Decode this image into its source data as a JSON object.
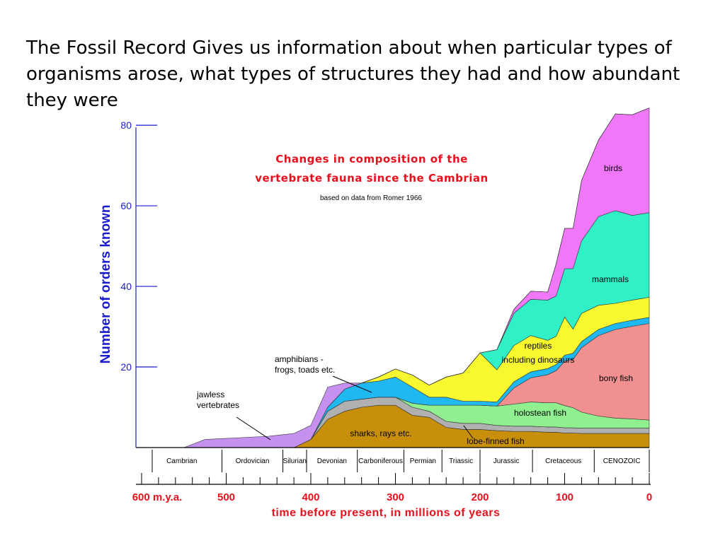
{
  "heading": "The Fossil Record Gives us information about when particular types of organisms arose, what types of structures they had  and how abundant they were",
  "chart_data": {
    "type": "area",
    "title_line1": "Changes in composition of the",
    "title_line2": "vertebrate fauna since the Cambrian",
    "subtitle": "based on data from Romer 1966",
    "ylabel": "Number of orders known",
    "xlabel": "time before present, in millions of years",
    "yticks": [
      20,
      40,
      60,
      80
    ],
    "ylim": [
      0,
      83
    ],
    "xlim": [
      600,
      0
    ],
    "xtick_labels": [
      {
        "value": 600,
        "label": "600 m.y.a."
      },
      {
        "value": 500,
        "label": "500"
      },
      {
        "value": 400,
        "label": "400"
      },
      {
        "value": 300,
        "label": "300"
      },
      {
        "value": 200,
        "label": "200"
      },
      {
        "value": 100,
        "label": "100"
      },
      {
        "value": 0,
        "label": "0"
      }
    ],
    "periods": [
      {
        "name": "Cambrian",
        "start": 600,
        "end": 505
      },
      {
        "name": "Ordovician",
        "start": 505,
        "end": 433
      },
      {
        "name": "Silurian",
        "start": 433,
        "end": 405
      },
      {
        "name": "Devonian",
        "start": 405,
        "end": 345
      },
      {
        "name": "Carboniferous",
        "start": 345,
        "end": 290
      },
      {
        "name": "Permian",
        "start": 290,
        "end": 245
      },
      {
        "name": "Triassic",
        "start": 245,
        "end": 200
      },
      {
        "name": "Jurassic",
        "start": 200,
        "end": 138
      },
      {
        "name": "Cretaceous",
        "start": 138,
        "end": 65
      },
      {
        "name": "CENOZOIC",
        "start": 65,
        "end": 0
      }
    ],
    "x": [
      600,
      550,
      525,
      450,
      420,
      400,
      380,
      360,
      340,
      320,
      300,
      280,
      260,
      240,
      220,
      200,
      180,
      160,
      140,
      120,
      110,
      100,
      90,
      80,
      60,
      40,
      20,
      0
    ],
    "series": [
      {
        "name": "sharks, rays etc.",
        "color": "#c8900a",
        "values": [
          0,
          0,
          0,
          0,
          0,
          2,
          7,
          9,
          10,
          10.5,
          10.5,
          8,
          7.5,
          5,
          4.5,
          4.5,
          4.2,
          4,
          4,
          3.8,
          3.8,
          3.6,
          3.6,
          3.5,
          3.5,
          3.5,
          3.5,
          3.5
        ]
      },
      {
        "name": "lobe-finned fish",
        "color": "#b0b0b0",
        "values": [
          0,
          0,
          0,
          0,
          0,
          0,
          2,
          2.5,
          2,
          2,
          2,
          2,
          1.5,
          1.5,
          1.5,
          1.5,
          1.3,
          1.3,
          1.3,
          1.3,
          1.3,
          1.3,
          1.3,
          1.3,
          1.3,
          1.3,
          1.3,
          1.3
        ]
      },
      {
        "name": "holostean fish",
        "color": "#90f090",
        "values": [
          0,
          0,
          0,
          0,
          0,
          0,
          0,
          0,
          0,
          0,
          0,
          1,
          1.5,
          4,
          4.5,
          4.5,
          4.8,
          5.5,
          6,
          6,
          6,
          5.5,
          5,
          4,
          3,
          2.5,
          2.3,
          2
        ]
      },
      {
        "name": "bony fish",
        "color": "#f09090",
        "values": [
          0,
          0,
          0,
          0,
          0,
          0,
          0,
          0,
          0,
          0,
          0,
          0,
          0,
          0,
          0,
          0,
          0,
          4,
          6,
          7,
          8,
          11,
          12,
          16,
          20,
          22,
          23,
          24
        ]
      },
      {
        "name": "amphibians - frogs, toads etc.",
        "color": "#20b8f0",
        "values": [
          0,
          0,
          0,
          0,
          0,
          0,
          1,
          3,
          4,
          4,
          5,
          4,
          2,
          2,
          1,
          1,
          1,
          1.5,
          1.5,
          1.5,
          1.5,
          1.5,
          1.5,
          1.5,
          1.5,
          1.5,
          1.5,
          1.5
        ]
      },
      {
        "name": "reptiles including dinosaurs",
        "color": "#f8f830",
        "values": [
          0,
          0,
          0,
          0,
          0,
          0,
          0,
          0,
          0,
          1,
          2,
          3,
          3,
          5,
          7,
          12,
          8,
          9,
          9,
          7,
          7,
          9.5,
          6,
          7,
          6,
          5,
          5,
          5
        ]
      },
      {
        "name": "mammals",
        "color": "#30f0c8",
        "values": [
          0,
          0,
          0,
          0,
          0,
          0,
          0,
          0,
          0,
          0,
          0,
          0,
          0,
          0,
          0,
          0,
          5,
          8,
          9,
          10,
          10,
          12,
          15,
          18,
          22,
          23,
          21,
          21
        ]
      },
      {
        "name": "birds",
        "color": "#f078f8",
        "values": [
          0,
          0,
          0,
          0,
          0,
          0,
          0,
          0,
          0,
          0,
          0,
          0,
          0,
          0,
          0,
          0,
          0,
          1,
          2,
          2,
          8,
          10,
          10,
          15,
          19,
          24,
          25,
          26
        ]
      },
      {
        "name": "jawless vertebrates",
        "color": "#c690f0",
        "values": [
          0,
          0,
          2,
          2.8,
          3.5,
          3.5,
          5,
          1.5,
          0,
          0,
          0,
          0,
          0,
          0,
          0,
          0,
          0,
          0,
          0,
          0,
          0,
          0,
          0,
          0,
          0,
          0,
          0,
          0
        ]
      }
    ],
    "annotations": [
      {
        "series": "birds",
        "lines": [
          "birds"
        ]
      },
      {
        "series": "mammals",
        "lines": [
          "mammals"
        ]
      },
      {
        "series": "reptiles including dinosaurs",
        "lines": [
          "reptiles",
          "including dinosaurs"
        ]
      },
      {
        "series": "bony fish",
        "lines": [
          "bony fish"
        ]
      },
      {
        "series": "holostean fish",
        "lines": [
          "holostean fish"
        ]
      },
      {
        "series": "sharks, rays etc.",
        "lines": [
          "sharks, rays etc."
        ]
      },
      {
        "series": "lobe-finned fish",
        "lines": [
          "lobe-finned fish"
        ]
      },
      {
        "series": "amphibians - frogs, toads etc.",
        "lines": [
          "amphibians -",
          "frogs, toads etc."
        ]
      },
      {
        "series": "jawless vertebrates",
        "lines": [
          "jawless",
          "vertebrates"
        ]
      }
    ]
  }
}
